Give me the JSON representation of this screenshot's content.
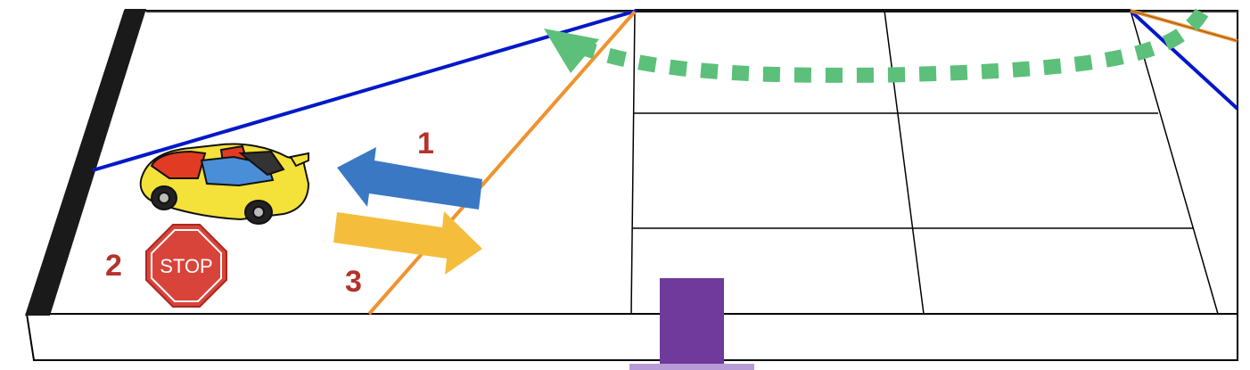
{
  "labels": {
    "step1": "1",
    "step2": "2",
    "step3": "3",
    "stop_sign": "STOP"
  },
  "colors": {
    "board_fill": "#ffffff",
    "board_edge": "#000000",
    "left_wall": "#1a1a1a",
    "blue_line": "#0018c8",
    "orange_line": "#f0922e",
    "dotted_path": "#5cc07a",
    "arrow_step1": "#3a78c4",
    "arrow_step3": "#f4be3c",
    "label_text": "#b5322b",
    "stop_sign": "#d9443a",
    "marker": "#6f3a9c",
    "car_body": "#f4e13a",
    "car_accent": "#e23b23"
  },
  "icons": [
    "car-icon",
    "stop-sign-icon",
    "left-arrow-icon",
    "right-arrow-icon",
    "curved-dotted-arrow-icon"
  ]
}
